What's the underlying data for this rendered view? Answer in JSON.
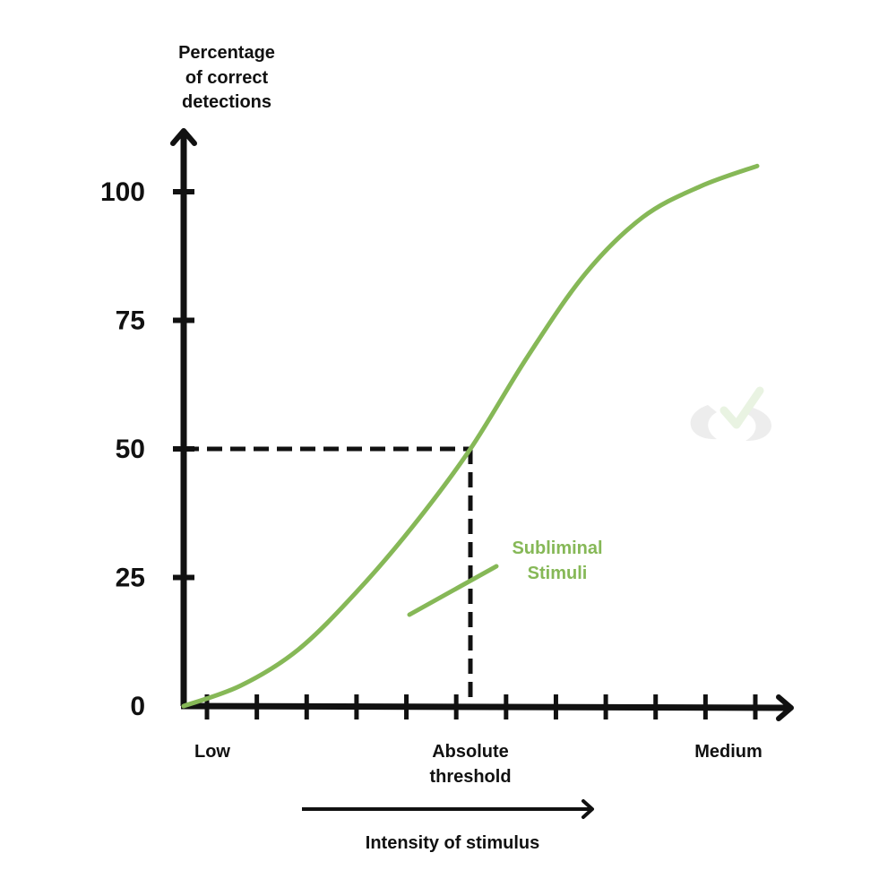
{
  "chart_data": {
    "type": "line",
    "ylabel": [
      "Percentage",
      "of correct",
      "detections"
    ],
    "xlabel": "Intensity of stimulus",
    "yticks": [
      0,
      25,
      50,
      75,
      100
    ],
    "ylim": [
      0,
      100
    ],
    "x_categories": [
      {
        "label": [
          "Low"
        ],
        "x": 0.05
      },
      {
        "label": [
          "Absolute",
          "threshold"
        ],
        "x": 0.5
      },
      {
        "label": [
          "Medium"
        ],
        "x": 0.95
      }
    ],
    "xlim": [
      0,
      1
    ],
    "x_minor_ticks": 12,
    "series": [
      {
        "color": "#86b857",
        "points": [
          [
            0.0,
            0
          ],
          [
            0.1,
            4
          ],
          [
            0.2,
            11
          ],
          [
            0.3,
            22
          ],
          [
            0.4,
            35
          ],
          [
            0.5,
            50
          ],
          [
            0.6,
            68
          ],
          [
            0.7,
            84
          ],
          [
            0.8,
            95
          ],
          [
            0.9,
            101
          ],
          [
            1.0,
            105
          ]
        ]
      }
    ],
    "threshold": {
      "x": 0.5,
      "y": 50
    },
    "annotation": {
      "text": [
        "Subliminal",
        "Stimuli"
      ],
      "color": "#86b857"
    }
  }
}
